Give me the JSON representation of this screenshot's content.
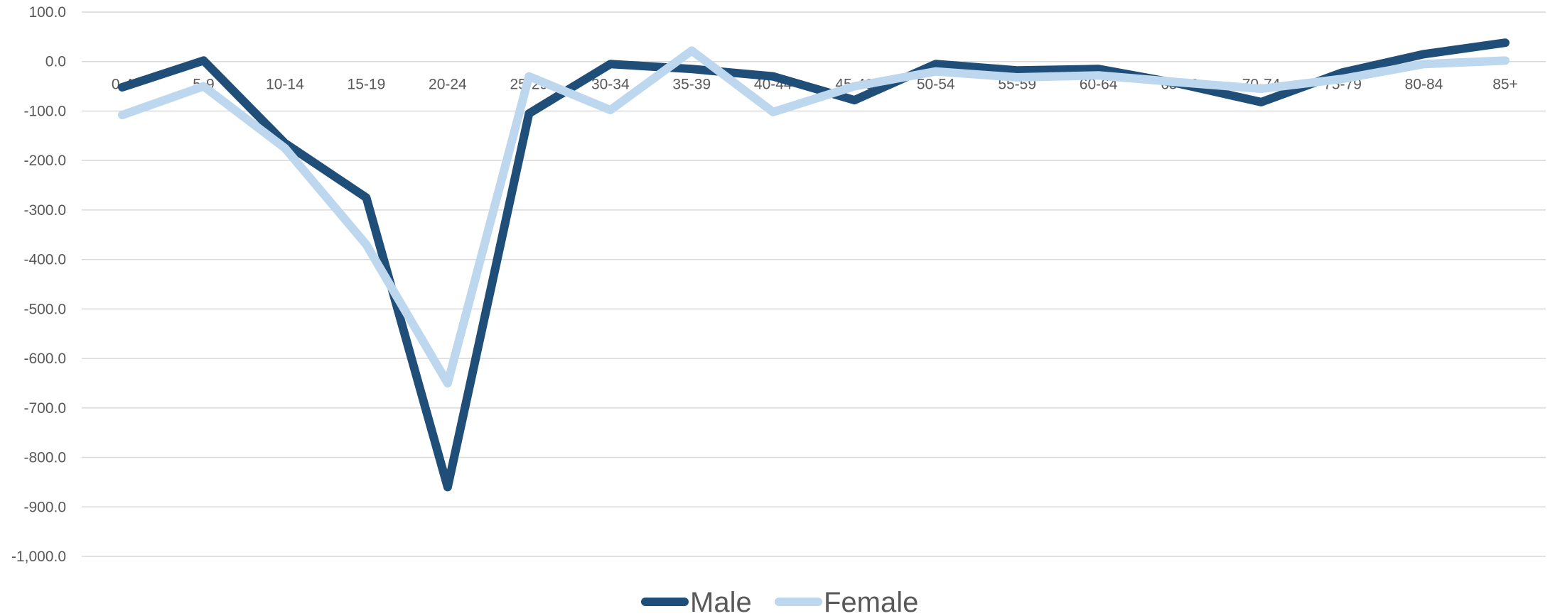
{
  "chart_data": {
    "type": "line",
    "title": "",
    "xlabel": "",
    "ylabel": "",
    "categories": [
      "0-4",
      "5-9",
      "10-14",
      "15-19",
      "20-24",
      "25-29",
      "30-34",
      "35-39",
      "40-44",
      "45-49",
      "50-54",
      "55-59",
      "60-64",
      "65-69",
      "70-74",
      "75-79",
      "80-84",
      "85+"
    ],
    "yticks": [
      "100.0",
      "0.0",
      "-100.0",
      "-200.0",
      "-300.0",
      "-400.0",
      "-500.0",
      "-600.0",
      "-700.0",
      "-800.0",
      "-900.0",
      "-1,000.0"
    ],
    "ylim": [
      -1000,
      100
    ],
    "grid": true,
    "legend_position": "bottom",
    "series": [
      {
        "name": "Male",
        "color": "#1f4e79",
        "values": [
          -52,
          2,
          -165,
          -275,
          -860,
          -105,
          -5,
          -15,
          -30,
          -78,
          -5,
          -18,
          -15,
          -45,
          -82,
          -22,
          15,
          38
        ]
      },
      {
        "name": "Female",
        "color": "#bdd7ee",
        "values": [
          -108,
          -50,
          -175,
          -370,
          -650,
          -30,
          -98,
          22,
          -102,
          -50,
          -20,
          -32,
          -28,
          -42,
          -55,
          -35,
          -5,
          2
        ]
      }
    ]
  }
}
